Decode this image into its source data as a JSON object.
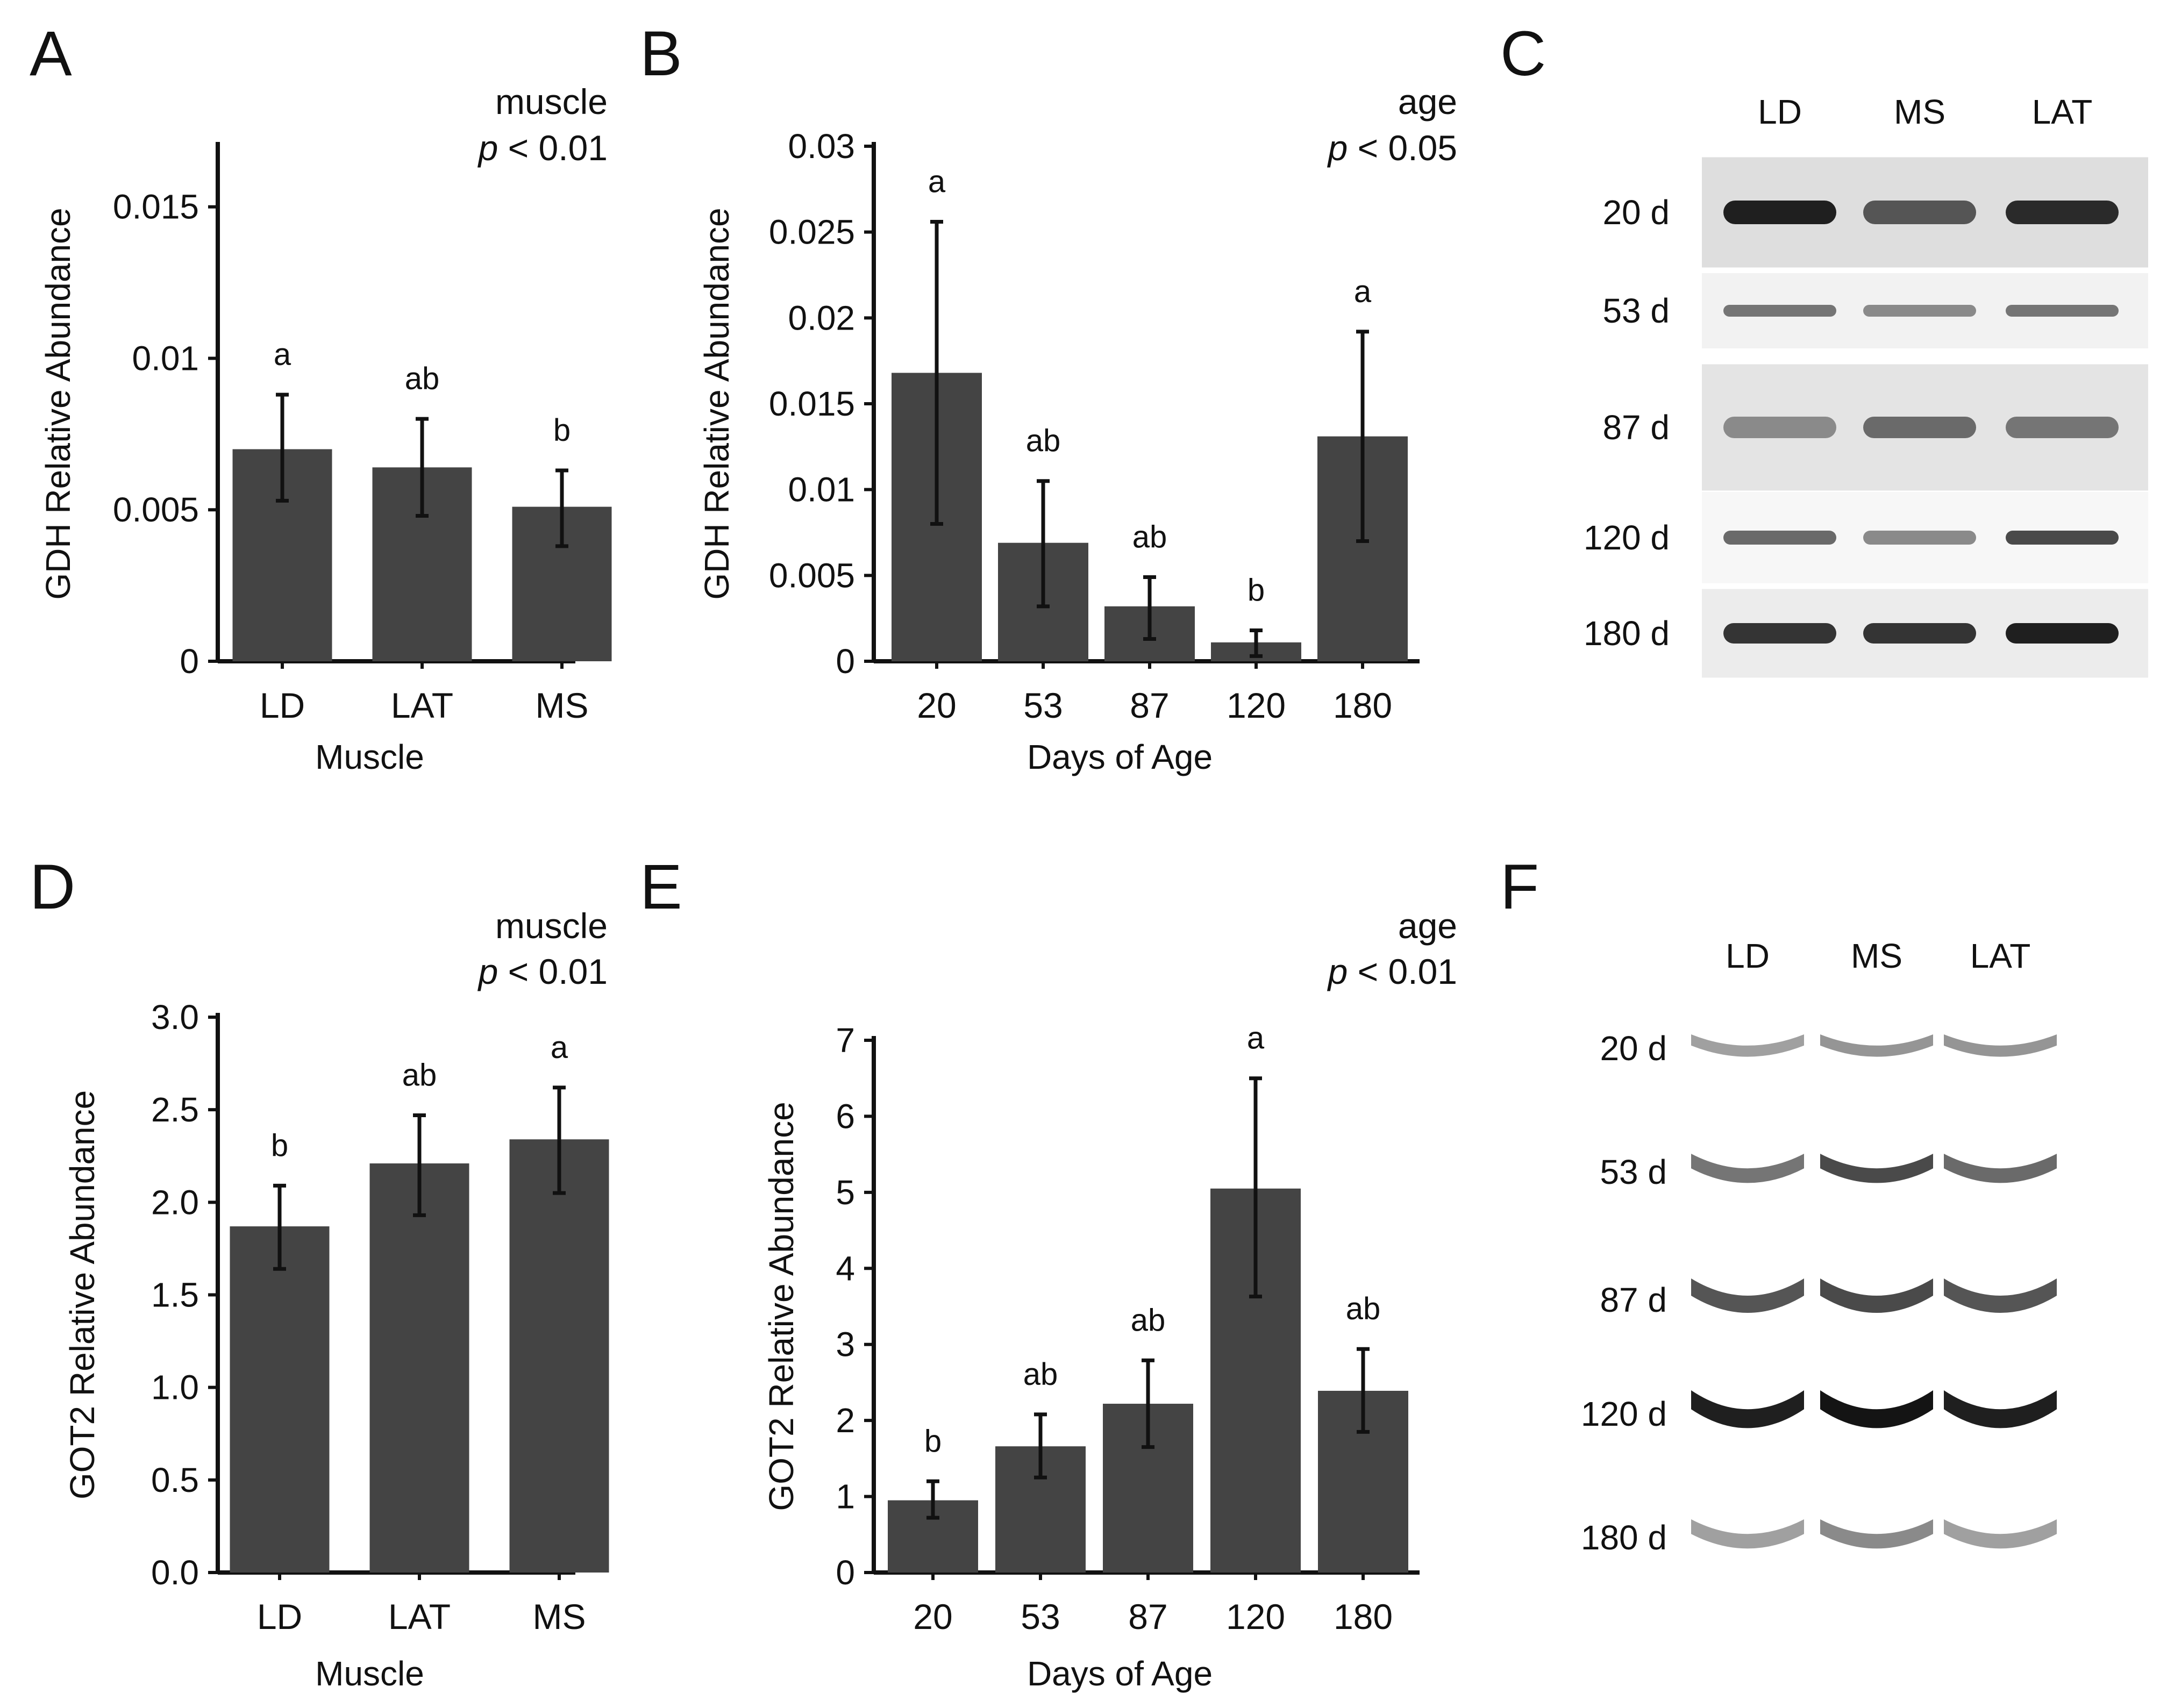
{
  "colors": {
    "bar": "#444444",
    "axis": "#111111",
    "blot_band_dark": "#1a1a1a"
  },
  "chart_data": [
    {
      "panel": "A",
      "type": "bar",
      "categories": [
        "LD",
        "LAT",
        "MS"
      ],
      "values": [
        0.007,
        0.0064,
        0.0051
      ],
      "err_low": [
        0.0053,
        0.0048,
        0.0038
      ],
      "err_high": [
        0.0088,
        0.008,
        0.0063
      ],
      "sig": [
        "a",
        "ab",
        "b"
      ],
      "xlabel": "Muscle",
      "ylabel": "GDH Relative Abundance",
      "ylim": [
        0,
        0.017
      ],
      "yticks": [
        0,
        0.005,
        0.01,
        0.015
      ],
      "ytick_labels": [
        "0",
        "0.005",
        "0.01",
        "0.015"
      ],
      "stat_title": "muscle",
      "stat_p": "p",
      "stat_rest": " < 0.01"
    },
    {
      "panel": "B",
      "type": "bar",
      "categories": [
        "20",
        "53",
        "87",
        "120",
        "180"
      ],
      "values": [
        0.0168,
        0.0069,
        0.0032,
        0.0011,
        0.0131
      ],
      "err_low": [
        0.008,
        0.0032,
        0.0013,
        0.0003,
        0.007
      ],
      "err_high": [
        0.0256,
        0.0105,
        0.0049,
        0.0018,
        0.0192
      ],
      "sig": [
        "a",
        "ab",
        "ab",
        "b",
        "a"
      ],
      "xlabel": "Days of Age",
      "ylabel": "GDH Relative Abundance",
      "ylim": [
        0,
        0.03
      ],
      "yticks": [
        0,
        0.005,
        0.01,
        0.015,
        0.02,
        0.025,
        0.03
      ],
      "ytick_labels": [
        "0",
        "0.005",
        "0.01",
        "0.015",
        "0.02",
        "0.025",
        "0.03"
      ],
      "stat_title": "age",
      "stat_p": "p",
      "stat_rest": " < 0.05"
    },
    {
      "panel": "D",
      "type": "bar",
      "categories": [
        "LD",
        "LAT",
        "MS"
      ],
      "values": [
        1.87,
        2.21,
        2.34
      ],
      "err_low": [
        1.64,
        1.93,
        2.05
      ],
      "err_high": [
        2.09,
        2.47,
        2.62
      ],
      "sig": [
        "b",
        "ab",
        "a"
      ],
      "xlabel": "Muscle",
      "ylabel": "GOT2 Relative Abundance",
      "ylim": [
        0,
        3.0
      ],
      "yticks": [
        0,
        0.5,
        1.0,
        1.5,
        2.0,
        2.5,
        3.0
      ],
      "ytick_labels": [
        "0.0",
        "0.5",
        "1.0",
        "1.5",
        "2.0",
        "2.5",
        "3.0"
      ],
      "stat_title": "muscle",
      "stat_p": "p",
      "stat_rest": " < 0.01"
    },
    {
      "panel": "E",
      "type": "bar",
      "categories": [
        "20",
        "53",
        "87",
        "120",
        "180"
      ],
      "values": [
        0.95,
        1.66,
        2.22,
        5.05,
        2.39
      ],
      "err_low": [
        0.72,
        1.25,
        1.65,
        3.63,
        1.85
      ],
      "err_high": [
        1.2,
        2.08,
        2.79,
        6.5,
        2.94
      ],
      "sig": [
        "b",
        "ab",
        "ab",
        "a",
        "ab"
      ],
      "xlabel": "Days of Age",
      "ylabel": "GOT2 Relative Abundance",
      "ylim": [
        0,
        7
      ],
      "yticks": [
        0,
        1,
        2,
        3,
        4,
        5,
        6,
        7
      ],
      "ytick_labels": [
        "0",
        "1",
        "2",
        "3",
        "4",
        "5",
        "6",
        "7"
      ],
      "stat_title": "age",
      "stat_p": "p",
      "stat_rest": " < 0.01"
    }
  ],
  "blots": [
    {
      "panel": "C",
      "lanes": [
        "LD",
        "MS",
        "LAT"
      ],
      "rows": [
        {
          "label": "20 d",
          "intensity": [
            0.95,
            0.7,
            0.9
          ]
        },
        {
          "label": "53 d",
          "intensity": [
            0.55,
            0.45,
            0.55
          ]
        },
        {
          "label": "87 d",
          "intensity": [
            0.45,
            0.6,
            0.55
          ]
        },
        {
          "label": "120 d",
          "intensity": [
            0.6,
            0.45,
            0.75
          ]
        },
        {
          "label": "180 d",
          "intensity": [
            0.85,
            0.85,
            0.95
          ]
        }
      ]
    },
    {
      "panel": "F",
      "lanes": [
        "LD",
        "MS",
        "LAT"
      ],
      "rows": [
        {
          "label": "20 d",
          "intensity": [
            0.35,
            0.4,
            0.4
          ]
        },
        {
          "label": "53 d",
          "intensity": [
            0.55,
            0.75,
            0.6
          ]
        },
        {
          "label": "87 d",
          "intensity": [
            0.7,
            0.75,
            0.7
          ]
        },
        {
          "label": "120 d",
          "intensity": [
            0.95,
            1.0,
            0.95
          ]
        },
        {
          "label": "180 d",
          "intensity": [
            0.35,
            0.45,
            0.35
          ]
        }
      ]
    }
  ]
}
